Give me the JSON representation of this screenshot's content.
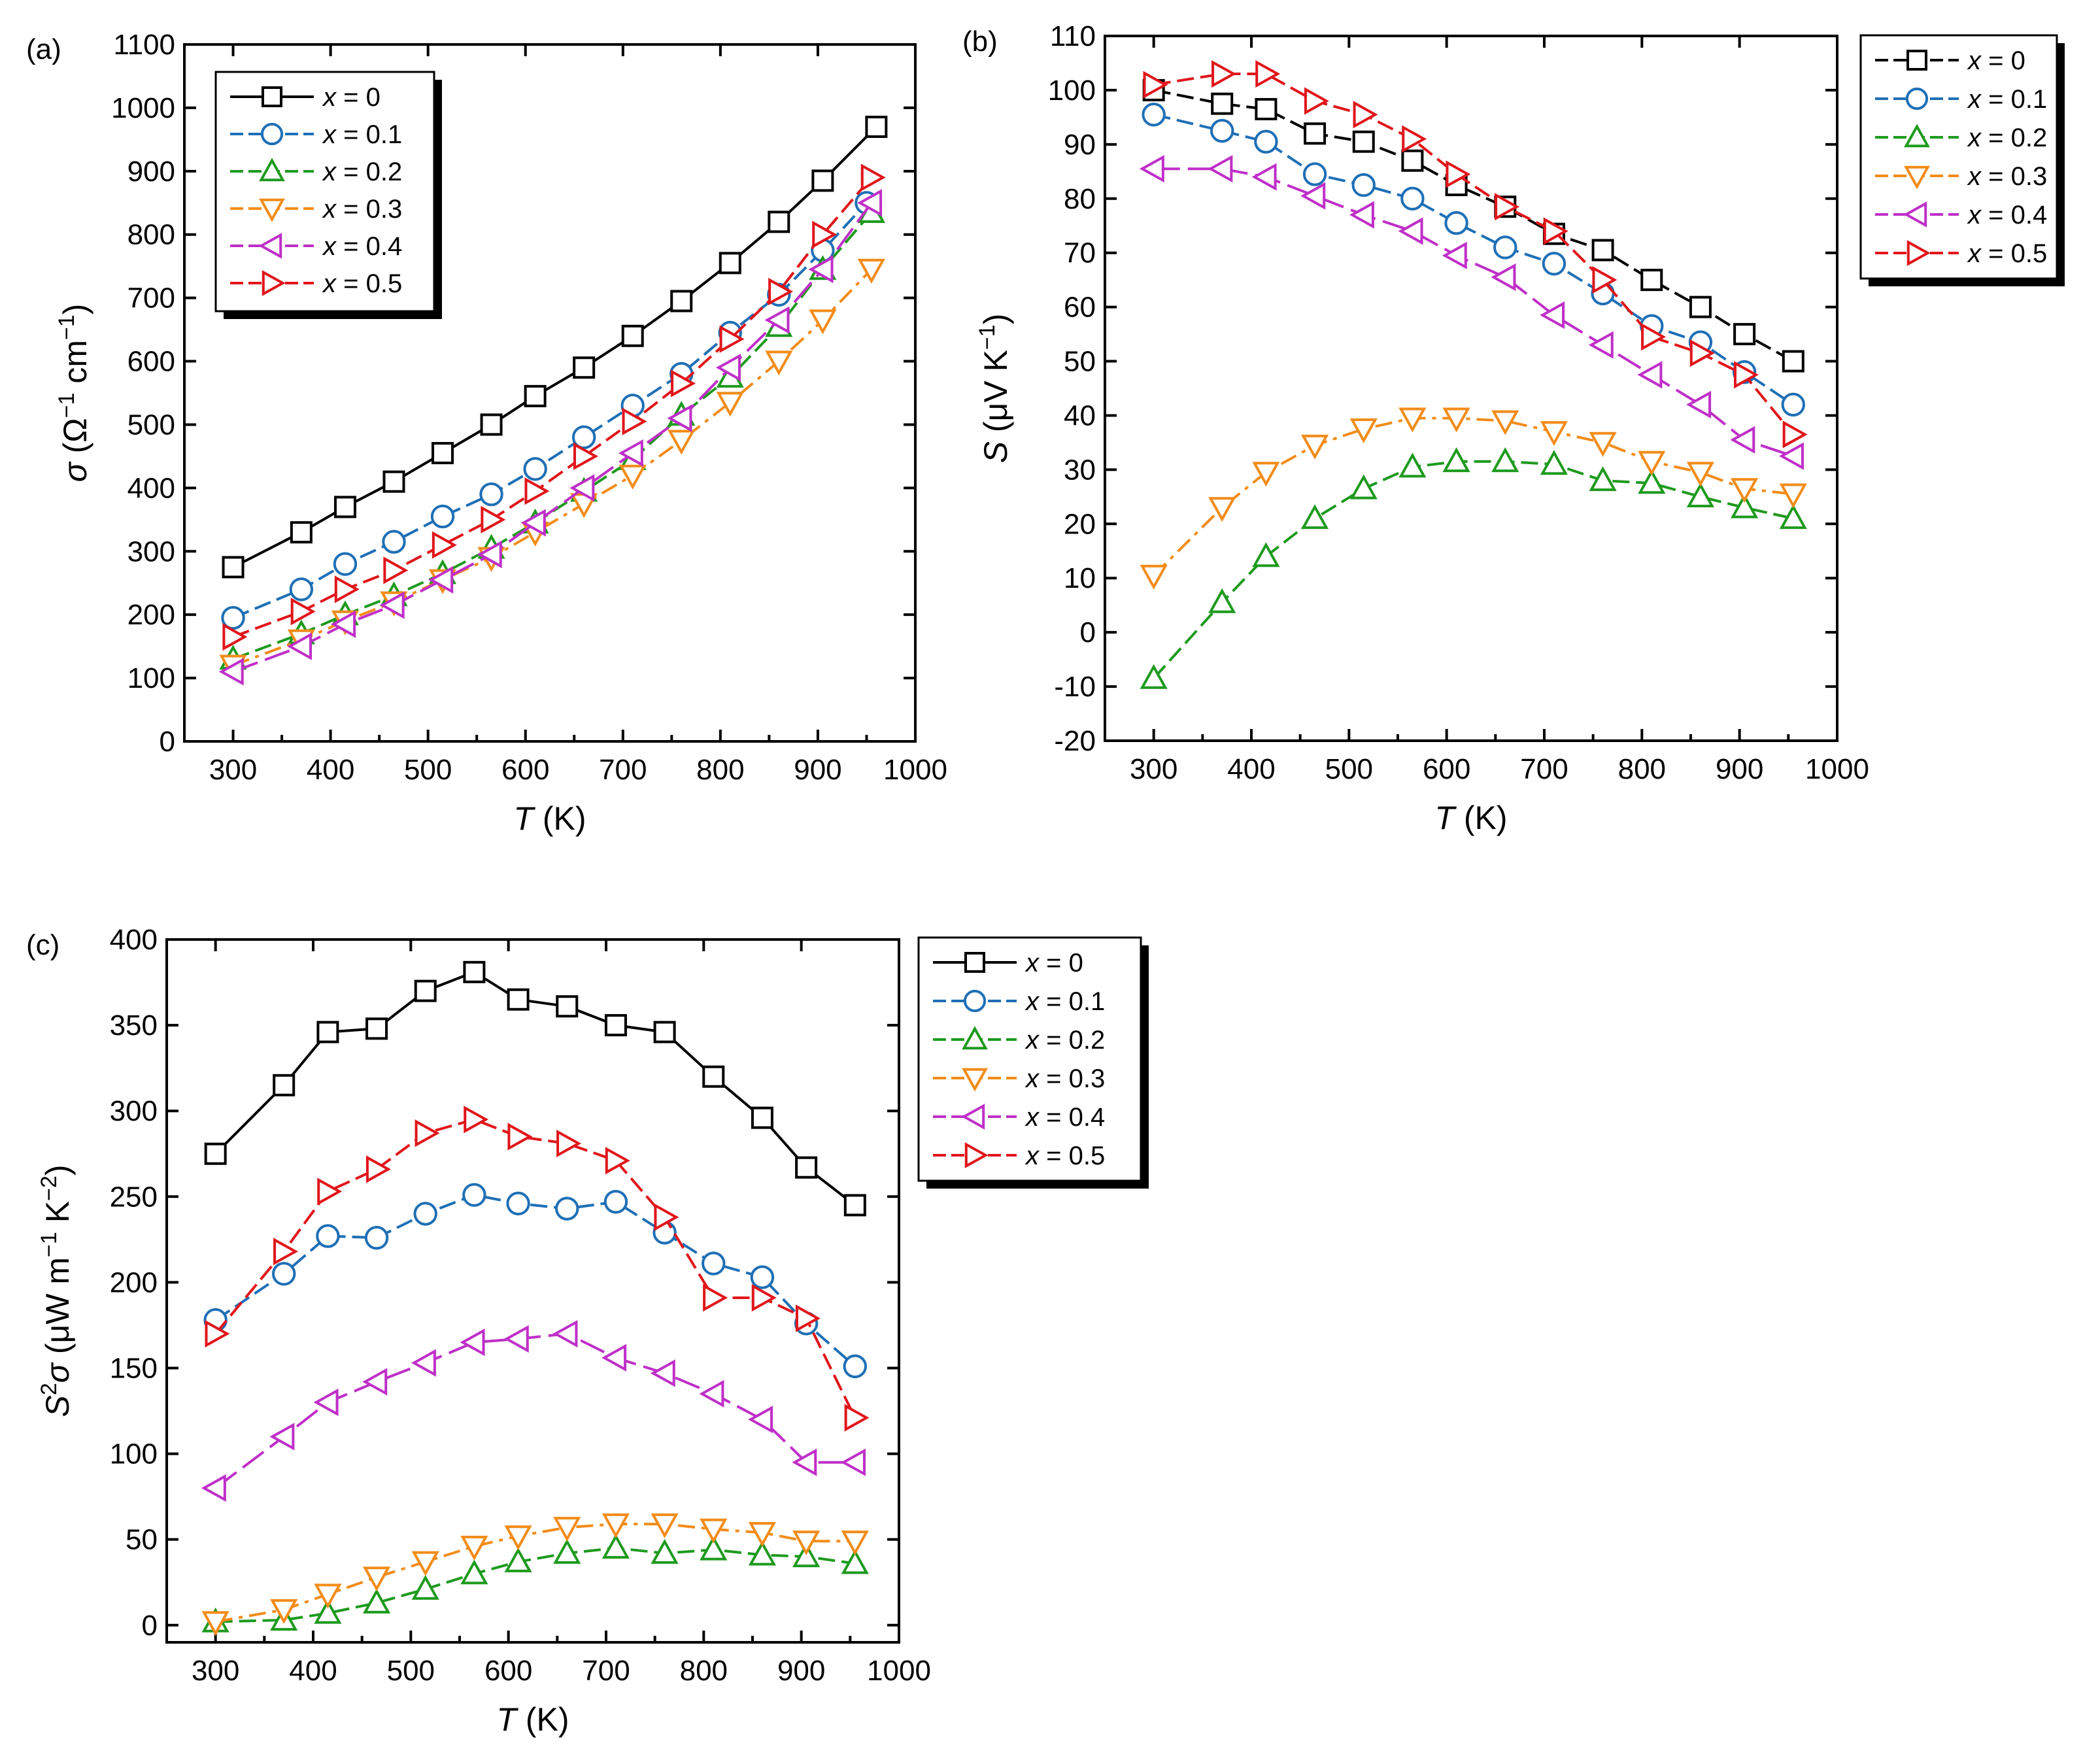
{
  "chart_data": [
    {
      "id": "a",
      "type": "line",
      "panel_label": "(a)",
      "xlabel": {
        "italic": "T",
        "rest": " (K)"
      },
      "ylabel": {
        "italic": "σ",
        "rest": " (Ω",
        "sup1": "−1",
        "mid": " cm",
        "sup2": "−1",
        "end": ")"
      },
      "xlim": [
        250,
        1000
      ],
      "ylim": [
        0,
        1100
      ],
      "xticks": [
        300,
        400,
        500,
        600,
        700,
        800,
        900,
        1000
      ],
      "yticks": [
        0,
        100,
        200,
        300,
        400,
        500,
        600,
        700,
        800,
        900,
        1000,
        1100
      ],
      "legend_position": "top-left",
      "series": [
        {
          "name": "x = 0",
          "label_var": "x",
          "label_val": " = 0",
          "color": "#000000",
          "marker": "square",
          "dash": "solid",
          "x": [
            300,
            370,
            415,
            465,
            515,
            565,
            610,
            660,
            710,
            760,
            810,
            860,
            905,
            960
          ],
          "y": [
            275,
            330,
            370,
            410,
            455,
            500,
            545,
            590,
            640,
            695,
            755,
            820,
            885,
            970
          ]
        },
        {
          "name": "x = 0.1",
          "label_var": "x",
          "label_val": " = 0.1",
          "color": "#1f6fb5",
          "marker": "circle",
          "dash": "dash",
          "x": [
            300,
            370,
            415,
            465,
            515,
            565,
            610,
            660,
            710,
            760,
            810,
            860,
            905,
            950
          ],
          "y": [
            195,
            240,
            280,
            315,
            355,
            390,
            430,
            480,
            530,
            580,
            645,
            705,
            775,
            850
          ]
        },
        {
          "name": "x = 0.2",
          "label_var": "x",
          "label_val": " = 0.2",
          "color": "#1e9a1e",
          "marker": "triangle-up",
          "dash": "dash",
          "x": [
            300,
            370,
            415,
            465,
            515,
            565,
            610,
            660,
            710,
            760,
            810,
            860,
            905,
            955
          ],
          "y": [
            130,
            170,
            200,
            230,
            265,
            305,
            345,
            395,
            445,
            515,
            575,
            655,
            745,
            835
          ]
        },
        {
          "name": "x = 0.3",
          "label_var": "x",
          "label_val": " = 0.3",
          "color": "#f28c1a",
          "marker": "triangle-down",
          "dash": "dashdot",
          "x": [
            300,
            370,
            415,
            465,
            515,
            565,
            610,
            660,
            710,
            760,
            810,
            860,
            905,
            955
          ],
          "y": [
            120,
            160,
            190,
            220,
            255,
            290,
            330,
            375,
            420,
            475,
            535,
            600,
            665,
            745
          ]
        },
        {
          "name": "x = 0.4",
          "label_var": "x",
          "label_val": " = 0.4",
          "color": "#bf2fc8",
          "marker": "triangle-left",
          "dash": "longdash",
          "x": [
            300,
            370,
            415,
            465,
            515,
            565,
            610,
            660,
            710,
            760,
            810,
            860,
            905,
            955
          ],
          "y": [
            110,
            150,
            185,
            215,
            255,
            295,
            345,
            400,
            455,
            510,
            590,
            665,
            745,
            850
          ]
        },
        {
          "name": "x = 0.5",
          "label_var": "x",
          "label_val": " = 0.5",
          "color": "#e0161b",
          "marker": "triangle-right",
          "dash": "dash",
          "x": [
            300,
            370,
            415,
            465,
            515,
            565,
            610,
            660,
            710,
            760,
            810,
            860,
            905,
            955
          ],
          "y": [
            165,
            205,
            240,
            270,
            310,
            350,
            395,
            450,
            505,
            565,
            635,
            710,
            800,
            890
          ]
        }
      ]
    },
    {
      "id": "b",
      "type": "line",
      "panel_label": "(b)",
      "xlabel": {
        "italic": "T",
        "rest": " (K)"
      },
      "ylabel": {
        "italic": "S",
        "rest": " (μV K",
        "sup1": "−1",
        "mid": "",
        "sup2": "",
        "end": ")"
      },
      "xlim": [
        250,
        1000
      ],
      "ylim": [
        -20,
        110
      ],
      "xticks": [
        300,
        400,
        500,
        600,
        700,
        800,
        900,
        1000
      ],
      "yticks": [
        -20,
        -10,
        0,
        10,
        20,
        30,
        40,
        50,
        60,
        70,
        80,
        90,
        100,
        110
      ],
      "legend_position": "outside-right",
      "series": [
        {
          "name": "x = 0",
          "label_var": "x",
          "label_val": " = 0",
          "color": "#000000",
          "marker": "square",
          "dash": "dash",
          "x": [
            300,
            370,
            415,
            465,
            515,
            565,
            610,
            660,
            710,
            760,
            810,
            860,
            905,
            955
          ],
          "y": [
            100,
            97.5,
            96.5,
            92,
            90.5,
            87,
            82.5,
            78.5,
            73.5,
            70.5,
            65,
            60,
            55,
            50
          ]
        },
        {
          "name": "x = 0.1",
          "label_var": "x",
          "label_val": " = 0.1",
          "color": "#1f6fb5",
          "marker": "circle",
          "dash": "dash",
          "x": [
            300,
            370,
            415,
            465,
            515,
            565,
            610,
            660,
            710,
            760,
            810,
            860,
            905,
            955
          ],
          "y": [
            95.5,
            92.5,
            90.5,
            84.5,
            82.5,
            80,
            75.5,
            71,
            68,
            62.5,
            56.5,
            53.5,
            48,
            42
          ]
        },
        {
          "name": "x = 0.2",
          "label_var": "x",
          "label_val": " = 0.2",
          "color": "#1e9a1e",
          "marker": "triangle-up",
          "dash": "dash",
          "x": [
            300,
            370,
            415,
            465,
            515,
            565,
            610,
            660,
            710,
            760,
            810,
            860,
            905,
            955
          ],
          "y": [
            -8.5,
            5.5,
            14,
            21,
            26.5,
            30.5,
            31.5,
            31.5,
            31,
            28,
            27.5,
            25,
            23,
            21
          ]
        },
        {
          "name": "x = 0.3",
          "label_var": "x",
          "label_val": " = 0.3",
          "color": "#f28c1a",
          "marker": "triangle-down",
          "dash": "dashdot",
          "x": [
            300,
            370,
            415,
            465,
            515,
            565,
            610,
            660,
            710,
            760,
            810,
            860,
            905,
            955
          ],
          "y": [
            10.5,
            23,
            29.5,
            34.5,
            37.5,
            39.5,
            39.5,
            39,
            37,
            35,
            31.5,
            29.5,
            26.5,
            25.5
          ]
        },
        {
          "name": "x = 0.4",
          "label_var": "x",
          "label_val": " = 0.4",
          "color": "#bf2fc8",
          "marker": "triangle-left",
          "dash": "longdash",
          "x": [
            300,
            370,
            415,
            465,
            515,
            565,
            610,
            660,
            710,
            760,
            810,
            860,
            905,
            955
          ],
          "y": [
            85.5,
            85.5,
            84,
            80.5,
            77,
            74,
            69.5,
            65.5,
            58.5,
            53,
            47.5,
            42,
            35.5,
            32.5
          ]
        },
        {
          "name": "x = 0.5",
          "label_var": "x",
          "label_val": " = 0.5",
          "color": "#e0161b",
          "marker": "triangle-right",
          "dash": "dash",
          "x": [
            300,
            370,
            415,
            465,
            515,
            565,
            610,
            660,
            710,
            760,
            810,
            860,
            905,
            955
          ],
          "y": [
            101,
            103,
            103,
            98,
            95.5,
            91,
            84.5,
            78.5,
            74,
            65,
            54.5,
            51.5,
            47.5,
            36.5
          ]
        }
      ]
    },
    {
      "id": "c",
      "type": "line",
      "panel_label": "(c)",
      "xlabel": {
        "italic": "T",
        "rest": " (K)"
      },
      "ylabel": {
        "italic": "S",
        "sup0": "2",
        "italic2": "σ",
        "rest": " (μW m",
        "sup1": "−1",
        "mid": " K",
        "sup2": "−2",
        "end": ")"
      },
      "xlim": [
        250,
        1000
      ],
      "ylim": [
        -10,
        400
      ],
      "xticks": [
        300,
        400,
        500,
        600,
        700,
        800,
        900,
        1000
      ],
      "yticks": [
        0,
        50,
        100,
        150,
        200,
        250,
        300,
        350,
        400
      ],
      "legend_position": "outside-right",
      "series": [
        {
          "name": "x = 0",
          "label_var": "x",
          "label_val": " = 0",
          "color": "#000000",
          "marker": "square",
          "dash": "solid",
          "x": [
            300,
            370,
            415,
            465,
            515,
            565,
            610,
            660,
            710,
            760,
            810,
            860,
            905,
            955
          ],
          "y": [
            275,
            315,
            346,
            348,
            370,
            381,
            365,
            361,
            350,
            346,
            320,
            296,
            267,
            245
          ]
        },
        {
          "name": "x = 0.1",
          "label_var": "x",
          "label_val": " = 0.1",
          "color": "#1f6fb5",
          "marker": "circle",
          "dash": "dash",
          "x": [
            300,
            370,
            415,
            465,
            515,
            565,
            610,
            660,
            710,
            760,
            810,
            860,
            905,
            955
          ],
          "y": [
            178,
            205,
            227,
            226,
            240,
            251,
            246,
            243,
            247,
            229,
            211,
            203,
            176,
            151
          ]
        },
        {
          "name": "x = 0.2",
          "label_var": "x",
          "label_val": " = 0.2",
          "color": "#1e9a1e",
          "marker": "triangle-up",
          "dash": "dash",
          "x": [
            300,
            370,
            415,
            465,
            515,
            565,
            610,
            660,
            710,
            760,
            810,
            860,
            905,
            955
          ],
          "y": [
            2,
            3,
            7,
            13,
            21,
            30,
            37,
            42,
            45,
            42,
            44,
            41,
            40,
            36
          ]
        },
        {
          "name": "x = 0.3",
          "label_var": "x",
          "label_val": " = 0.3",
          "color": "#f28c1a",
          "marker": "triangle-down",
          "dash": "dashdot",
          "x": [
            300,
            370,
            415,
            465,
            515,
            565,
            610,
            660,
            710,
            760,
            810,
            860,
            905,
            955
          ],
          "y": [
            2,
            9,
            18,
            28,
            37,
            46,
            52,
            57,
            59,
            59,
            56,
            54,
            49,
            49
          ]
        },
        {
          "name": "x = 0.4",
          "label_var": "x",
          "label_val": " = 0.4",
          "color": "#bf2fc8",
          "marker": "triangle-left",
          "dash": "longdash",
          "x": [
            300,
            370,
            415,
            465,
            515,
            565,
            610,
            660,
            710,
            760,
            810,
            860,
            905,
            955
          ],
          "y": [
            80,
            110,
            130,
            142,
            153,
            165,
            167,
            170,
            156,
            147,
            135,
            120,
            95,
            95
          ]
        },
        {
          "name": "x = 0.5",
          "label_var": "x",
          "label_val": " = 0.5",
          "color": "#e0161b",
          "marker": "triangle-right",
          "dash": "dash",
          "x": [
            300,
            370,
            415,
            465,
            515,
            565,
            610,
            660,
            710,
            760,
            810,
            860,
            905,
            955
          ],
          "y": [
            170,
            218,
            253,
            266,
            287,
            295,
            285,
            281,
            271,
            238,
            191,
            191,
            179,
            121
          ]
        }
      ]
    }
  ]
}
